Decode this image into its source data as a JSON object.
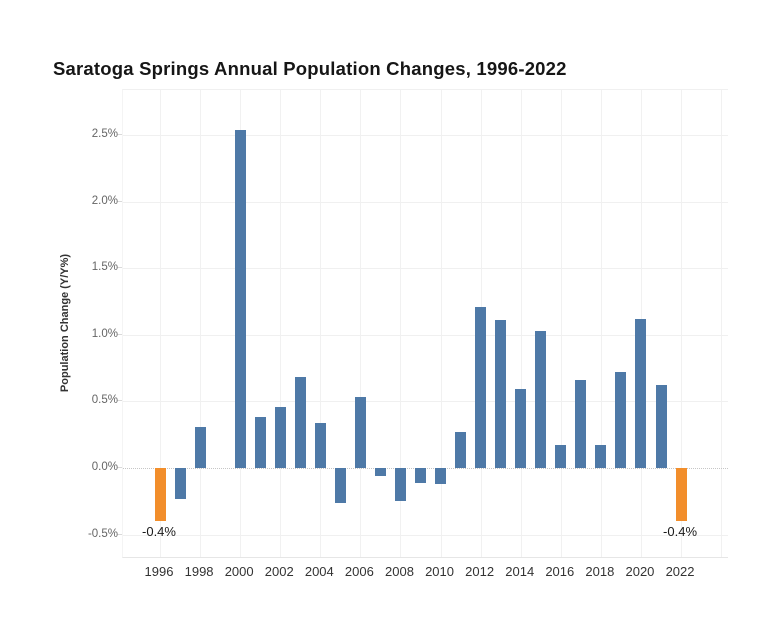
{
  "chart_data": {
    "type": "bar",
    "title": "Saratoga Springs Annual Population Changes, 1996-2022",
    "xlabel": "",
    "ylabel": "Population Change (Y/Y%)",
    "categories": [
      1996,
      1997,
      1998,
      1999,
      2000,
      2001,
      2002,
      2003,
      2004,
      2005,
      2006,
      2007,
      2008,
      2009,
      2010,
      2011,
      2012,
      2013,
      2014,
      2015,
      2016,
      2017,
      2018,
      2019,
      2020,
      2021,
      2022
    ],
    "values": [
      -0.4,
      -0.23,
      0.31,
      0.0,
      2.54,
      0.38,
      0.46,
      0.68,
      0.34,
      -0.26,
      0.53,
      -0.06,
      -0.25,
      -0.11,
      -0.12,
      0.27,
      1.21,
      1.11,
      0.59,
      1.03,
      0.17,
      0.66,
      0.17,
      0.72,
      1.12,
      0.62,
      -0.4
    ],
    "highlight_years": [
      1996,
      2022
    ],
    "colors": {
      "bar": "#4E79A7",
      "highlight": "#F28E2B"
    },
    "y_ticks": [
      {
        "value": 2.5,
        "label": "2.5%"
      },
      {
        "value": 2.0,
        "label": "2.0%"
      },
      {
        "value": 1.5,
        "label": "1.5%"
      },
      {
        "value": 1.0,
        "label": "1.0%"
      },
      {
        "value": 0.5,
        "label": "0.5%"
      },
      {
        "value": 0.0,
        "label": "0.0%"
      },
      {
        "value": -0.5,
        "label": "-0.5%"
      }
    ],
    "x_tick_labels": [
      "1996",
      "1998",
      "2000",
      "2002",
      "2004",
      "2006",
      "2008",
      "2010",
      "2012",
      "2014",
      "2016",
      "2018",
      "2020",
      "2022"
    ],
    "ylim": [
      -0.68,
      2.84
    ],
    "grid": "on",
    "legend": "none",
    "zero_line": "dotted",
    "annotations": [
      {
        "year": 1996,
        "value": -0.4,
        "text": "-0.4%"
      },
      {
        "year": 2022,
        "value": -0.4,
        "text": "-0.4%"
      }
    ]
  }
}
